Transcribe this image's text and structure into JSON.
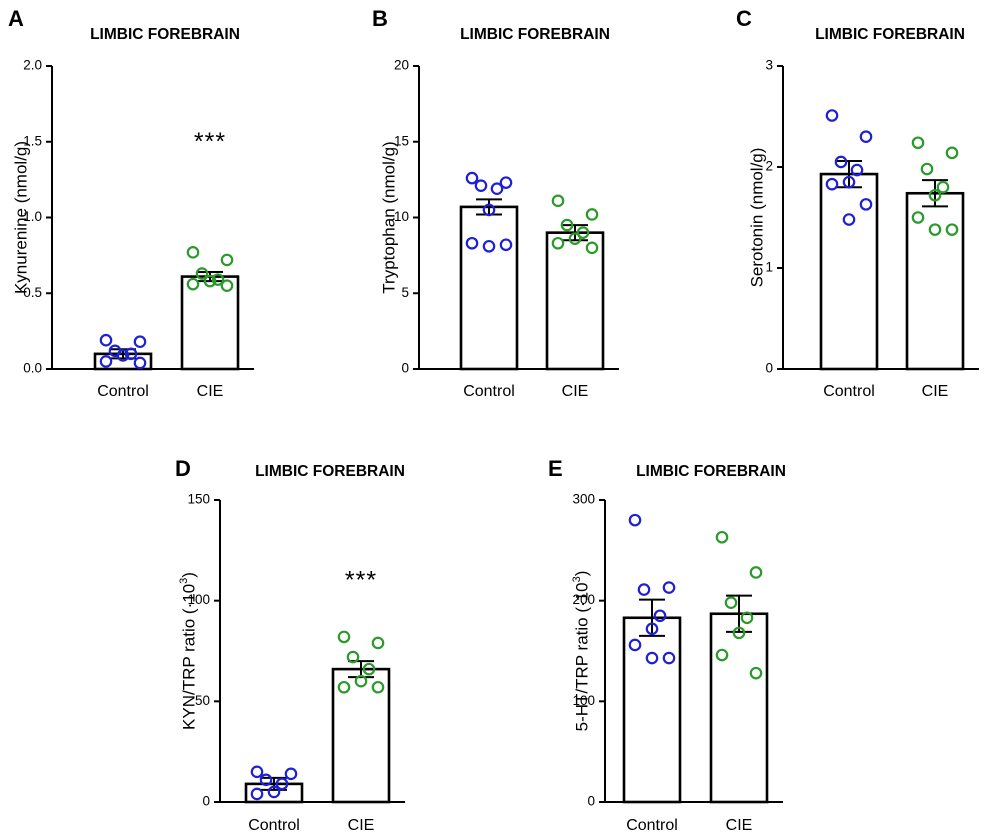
{
  "colors": {
    "control": "#1f1fd6",
    "cie": "#2a9a2a",
    "axis": "#000000"
  },
  "chart_data": [
    {
      "type": "bar",
      "panel": "A",
      "title": "LIMBIC FOREBRAIN",
      "xlabel": "",
      "ylabel": "Kynurenine (nmol/g)",
      "ylabel_sup": "",
      "categories": [
        "Control",
        "CIE"
      ],
      "means": [
        0.1,
        0.61
      ],
      "sem": [
        0.03,
        0.03
      ],
      "points": [
        [
          0.19,
          0.18,
          0.12,
          0.1,
          0.09,
          0.05,
          0.04
        ],
        [
          0.77,
          0.72,
          0.63,
          0.59,
          0.58,
          0.56,
          0.55
        ]
      ],
      "ylim": [
        0,
        2.0
      ],
      "yticks": [
        "0.0",
        "0.5",
        "1.0",
        "1.5",
        "2.0"
      ],
      "yticks_values": [
        0,
        0.5,
        1.0,
        1.5,
        2.0
      ],
      "significance": {
        "label": "***",
        "category": "CIE",
        "y": 1.5
      }
    },
    {
      "type": "bar",
      "panel": "B",
      "title": "LIMBIC FOREBRAIN",
      "xlabel": "",
      "ylabel": "Tryptophan (nmol/g)",
      "ylabel_sup": "",
      "categories": [
        "Control",
        "CIE"
      ],
      "means": [
        10.7,
        9.0
      ],
      "sem": [
        0.5,
        0.5
      ],
      "points": [
        [
          12.6,
          12.3,
          12.1,
          11.9,
          10.5,
          8.3,
          8.2,
          8.1
        ],
        [
          11.1,
          10.2,
          9.5,
          9.0,
          8.6,
          8.3,
          8.0
        ]
      ],
      "ylim": [
        0,
        20
      ],
      "yticks": [
        "0",
        "5",
        "10",
        "15",
        "20"
      ],
      "yticks_values": [
        0,
        5,
        10,
        15,
        20
      ],
      "significance": null
    },
    {
      "type": "bar",
      "panel": "C",
      "title": "LIMBIC FOREBRAIN",
      "xlabel": "",
      "ylabel": "Serotonin (nmol/g)",
      "ylabel_sup": "",
      "categories": [
        "Control",
        "CIE"
      ],
      "means": [
        1.93,
        1.74
      ],
      "sem": [
        0.13,
        0.13
      ],
      "points": [
        [
          2.51,
          2.3,
          2.05,
          1.97,
          1.85,
          1.83,
          1.63,
          1.48
        ],
        [
          2.24,
          2.14,
          1.98,
          1.8,
          1.72,
          1.5,
          1.38,
          1.38
        ]
      ],
      "ylim": [
        0,
        3
      ],
      "yticks": [
        "0",
        "1",
        "2",
        "3"
      ],
      "yticks_values": [
        0,
        1,
        2,
        3
      ],
      "significance": null
    },
    {
      "type": "bar",
      "panel": "D",
      "title": "LIMBIC FOREBRAIN",
      "xlabel": "",
      "ylabel": "KYN/TRP ratio (·10",
      "ylabel_sup": "3",
      "ylabel_tail": ")",
      "categories": [
        "Control",
        "CIE"
      ],
      "means": [
        9,
        66
      ],
      "sem": [
        3,
        4
      ],
      "points": [
        [
          15,
          14,
          11,
          9,
          5,
          4
        ],
        [
          82,
          79,
          72,
          66,
          60,
          57,
          57
        ]
      ],
      "ylim": [
        0,
        150
      ],
      "yticks": [
        "0",
        "50",
        "100",
        "150"
      ],
      "yticks_values": [
        0,
        50,
        100,
        150
      ],
      "significance": {
        "label": "***",
        "category": "CIE",
        "y": 110
      }
    },
    {
      "type": "bar",
      "panel": "E",
      "title": "LIMBIC FOREBRAIN",
      "xlabel": "",
      "ylabel": "5-HT/TRP ratio (·10",
      "ylabel_sup": "3",
      "ylabel_tail": ")",
      "categories": [
        "Control",
        "CIE"
      ],
      "means": [
        183,
        187
      ],
      "sem": [
        18,
        18
      ],
      "points": [
        [
          280,
          213,
          211,
          185,
          172,
          156,
          143,
          143
        ],
        [
          263,
          228,
          198,
          183,
          168,
          146,
          128
        ]
      ],
      "ylim": [
        0,
        300
      ],
      "yticks": [
        "0",
        "100",
        "200",
        "300"
      ],
      "yticks_values": [
        0,
        100,
        200,
        300
      ],
      "significance": null
    }
  ]
}
